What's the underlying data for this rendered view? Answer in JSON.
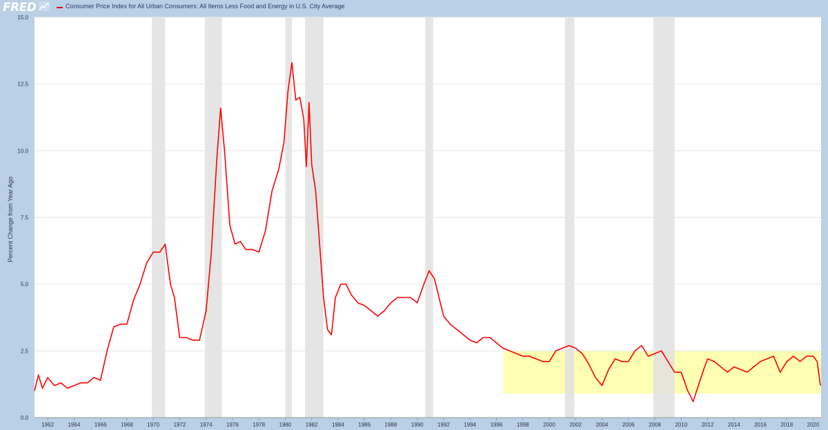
{
  "header": {
    "logo_text": "FRED",
    "logo_icon": "chart-icon",
    "legend_label": "Consumer Price Index for All Urban Consumers: All Items Less Food and Energy in U.S. City Average"
  },
  "chart_data": {
    "type": "line",
    "title": "",
    "ylabel": "Percent Change from Year Ago",
    "xlabel": "",
    "xlim": [
      1961.0,
      2020.6
    ],
    "ylim": [
      0,
      15
    ],
    "yticks": [
      0.0,
      2.5,
      5.0,
      7.5,
      10.0,
      12.5,
      15.0
    ],
    "ytick_labels": [
      "0.0",
      "2.5",
      "5.0",
      "7.5",
      "10.0",
      "12.5",
      "15.0"
    ],
    "xticks": [
      1962,
      1964,
      1966,
      1968,
      1970,
      1972,
      1974,
      1976,
      1978,
      1980,
      1982,
      1984,
      1986,
      1988,
      1990,
      1992,
      1994,
      1996,
      1998,
      2000,
      2002,
      2004,
      2006,
      2008,
      2010,
      2012,
      2014,
      2016,
      2018,
      2020
    ],
    "grid": true,
    "line_color": "#ff0000",
    "recession_color": "#e1e1e1",
    "recessions": [
      [
        1969.9,
        1970.9
      ],
      [
        1973.9,
        1975.2
      ],
      [
        1980.0,
        1980.5
      ],
      [
        1981.5,
        1982.9
      ],
      [
        1990.6,
        1991.2
      ],
      [
        2001.2,
        2001.9
      ],
      [
        2007.9,
        2009.5
      ]
    ],
    "highlight": {
      "x_range": [
        1996.5,
        2020.6
      ],
      "y_range": [
        0.9,
        2.5
      ],
      "color": "#ffff99"
    },
    "series": [
      {
        "x": [
          1961.0,
          1961.3,
          1961.6,
          1962.0,
          1962.5,
          1963.0,
          1963.5,
          1964.0,
          1964.5,
          1965.0,
          1965.5,
          1966.0,
          1966.5,
          1967.0,
          1967.5,
          1968.0,
          1968.5,
          1969.0,
          1969.5,
          1970.0,
          1970.5,
          1970.9,
          1971.3,
          1971.6,
          1972.0,
          1972.5,
          1973.0,
          1973.5,
          1974.0,
          1974.4,
          1974.8,
          1975.1,
          1975.4,
          1975.8,
          1976.2,
          1976.6,
          1977.0,
          1977.5,
          1978.0,
          1978.5,
          1979.0,
          1979.5,
          1979.9,
          1980.2,
          1980.5,
          1980.8,
          1981.1,
          1981.4,
          1981.6,
          1981.8,
          1982.0,
          1982.3,
          1982.6,
          1982.9,
          1983.2,
          1983.5,
          1983.8,
          1984.2,
          1984.6,
          1985.0,
          1985.5,
          1986.0,
          1986.5,
          1987.0,
          1987.5,
          1988.0,
          1988.5,
          1989.0,
          1989.5,
          1990.0,
          1990.5,
          1990.9,
          1991.3,
          1991.7,
          1992.0,
          1992.5,
          1993.0,
          1993.5,
          1994.0,
          1994.5,
          1995.0,
          1995.5,
          1996.0,
          1996.5,
          1997.0,
          1997.5,
          1998.0,
          1998.5,
          1999.0,
          1999.5,
          2000.0,
          2000.5,
          2001.0,
          2001.5,
          2002.0,
          2002.5,
          2003.0,
          2003.5,
          2004.0,
          2004.5,
          2005.0,
          2005.5,
          2006.0,
          2006.5,
          2007.0,
          2007.5,
          2008.0,
          2008.5,
          2009.0,
          2009.5,
          2010.0,
          2010.5,
          2010.9,
          2011.3,
          2011.7,
          2012.0,
          2012.5,
          2013.0,
          2013.5,
          2014.0,
          2014.5,
          2015.0,
          2015.5,
          2016.0,
          2016.5,
          2017.0,
          2017.5,
          2018.0,
          2018.5,
          2019.0,
          2019.5,
          2020.0,
          2020.3,
          2020.55
        ],
        "y": [
          1.0,
          1.6,
          1.1,
          1.5,
          1.2,
          1.3,
          1.1,
          1.2,
          1.3,
          1.3,
          1.5,
          1.4,
          2.5,
          3.4,
          3.5,
          3.5,
          4.4,
          5.0,
          5.8,
          6.2,
          6.2,
          6.5,
          5.0,
          4.5,
          3.0,
          3.0,
          2.9,
          2.9,
          4.0,
          6.2,
          9.6,
          11.6,
          10.0,
          7.2,
          6.5,
          6.6,
          6.3,
          6.3,
          6.2,
          7.0,
          8.5,
          9.3,
          10.3,
          12.2,
          13.3,
          11.9,
          12.0,
          11.2,
          9.4,
          11.8,
          9.5,
          8.5,
          6.5,
          4.5,
          3.3,
          3.1,
          4.5,
          5.0,
          5.0,
          4.6,
          4.3,
          4.2,
          4.0,
          3.8,
          4.0,
          4.3,
          4.5,
          4.5,
          4.5,
          4.3,
          5.0,
          5.5,
          5.2,
          4.4,
          3.8,
          3.5,
          3.3,
          3.1,
          2.9,
          2.8,
          3.0,
          3.0,
          2.8,
          2.6,
          2.5,
          2.4,
          2.3,
          2.3,
          2.2,
          2.1,
          2.1,
          2.5,
          2.6,
          2.7,
          2.6,
          2.4,
          2.0,
          1.5,
          1.2,
          1.8,
          2.2,
          2.1,
          2.1,
          2.5,
          2.7,
          2.3,
          2.4,
          2.5,
          2.1,
          1.7,
          1.7,
          1.0,
          0.6,
          1.2,
          1.8,
          2.2,
          2.1,
          1.9,
          1.7,
          1.9,
          1.8,
          1.7,
          1.9,
          2.1,
          2.2,
          2.3,
          1.7,
          2.1,
          2.3,
          2.1,
          2.3,
          2.3,
          2.1,
          1.2
        ]
      }
    ]
  }
}
